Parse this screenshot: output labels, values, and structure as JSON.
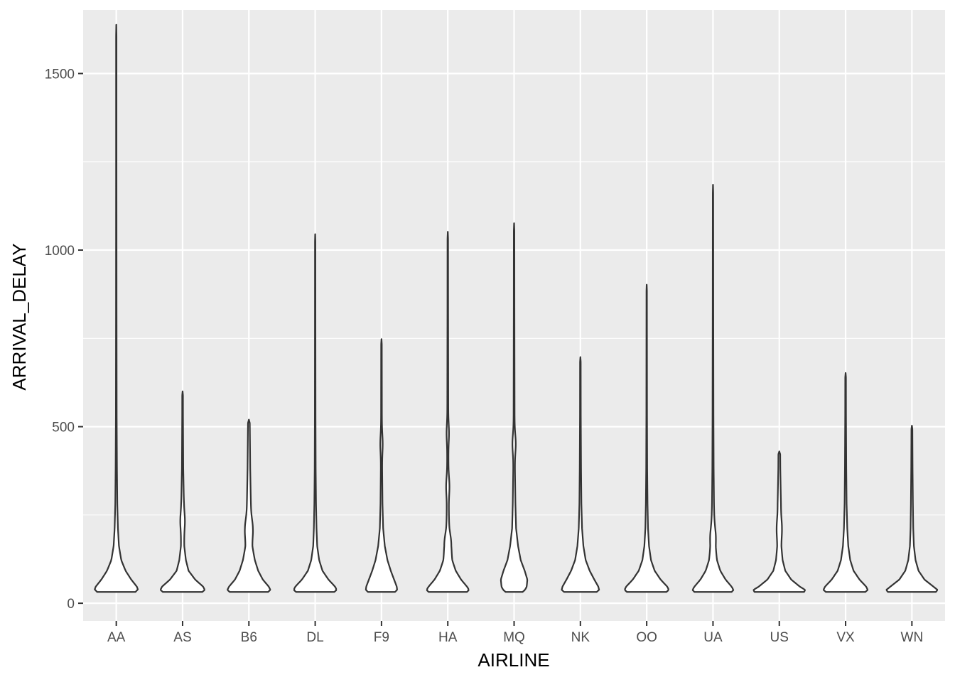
{
  "chart_data": {
    "type": "violin",
    "title": "",
    "xlabel": "AIRLINE",
    "ylabel": "ARRIVAL_DELAY",
    "ylim": [
      -50,
      1680
    ],
    "y_ticks": [
      0,
      500,
      1000,
      1500
    ],
    "y_tick_labels": [
      "0",
      "500",
      "1000",
      "1500"
    ],
    "grid": true,
    "legend": "none",
    "colors": {
      "panel": "#ebebeb",
      "grid": "#ffffff",
      "violin_fill": "#ffffff",
      "violin_stroke": "#333333"
    },
    "categories": [
      "AA",
      "AS",
      "B6",
      "DL",
      "F9",
      "HA",
      "MQ",
      "NK",
      "OO",
      "UA",
      "US",
      "VX",
      "WN"
    ],
    "violins": [
      {
        "category": "AA",
        "min": 32,
        "max": 1638,
        "widths": [
          0.68,
          0.62,
          0.45,
          0.28,
          0.15,
          0.08,
          0.05,
          0.03,
          0.02,
          0.012,
          0.008,
          0.006
        ],
        "bulges": []
      },
      {
        "category": "AS",
        "min": 32,
        "max": 600,
        "widths": [
          0.7,
          0.62,
          0.38,
          0.18,
          0.1,
          0.05,
          0.04,
          0.04,
          0.02,
          0.012,
          0.008,
          0.006
        ],
        "bulges": [
          {
            "at": 200,
            "w": 0.03
          }
        ]
      },
      {
        "category": "B6",
        "min": 32,
        "max": 520,
        "widths": [
          0.68,
          0.6,
          0.42,
          0.28,
          0.18,
          0.1,
          0.07,
          0.06,
          0.04,
          0.025,
          0.012,
          0.008
        ],
        "bulges": [
          {
            "at": 180,
            "w": 0.05
          }
        ]
      },
      {
        "category": "DL",
        "min": 32,
        "max": 1045,
        "widths": [
          0.68,
          0.6,
          0.4,
          0.22,
          0.12,
          0.06,
          0.04,
          0.025,
          0.015,
          0.01,
          0.007,
          0.005
        ],
        "bulges": []
      },
      {
        "category": "F9",
        "min": 32,
        "max": 748,
        "widths": [
          0.48,
          0.46,
          0.38,
          0.28,
          0.18,
          0.1,
          0.05,
          0.03,
          0.02,
          0.012,
          0.008,
          0.006
        ],
        "bulges": [
          {
            "at": 420,
            "w": 0.02
          }
        ]
      },
      {
        "category": "HA",
        "min": 32,
        "max": 1052,
        "widths": [
          0.68,
          0.58,
          0.4,
          0.24,
          0.13,
          0.07,
          0.04,
          0.03,
          0.02,
          0.015,
          0.01,
          0.007
        ],
        "bulges": [
          {
            "at": 140,
            "w": 0.04
          },
          {
            "at": 300,
            "w": 0.025
          },
          {
            "at": 450,
            "w": 0.02
          }
        ]
      },
      {
        "category": "MQ",
        "min": 32,
        "max": 1076,
        "widths": [
          0.3,
          0.38,
          0.4,
          0.32,
          0.2,
          0.12,
          0.06,
          0.04,
          0.025,
          0.015,
          0.01,
          0.007
        ],
        "bulges": [
          {
            "at": 420,
            "w": 0.03
          }
        ]
      },
      {
        "category": "NK",
        "min": 32,
        "max": 697,
        "widths": [
          0.58,
          0.54,
          0.42,
          0.28,
          0.16,
          0.09,
          0.05,
          0.03,
          0.02,
          0.012,
          0.008,
          0.006
        ],
        "bulges": []
      },
      {
        "category": "OO",
        "min": 32,
        "max": 902,
        "widths": [
          0.7,
          0.62,
          0.42,
          0.24,
          0.13,
          0.07,
          0.04,
          0.025,
          0.015,
          0.01,
          0.007,
          0.005
        ],
        "bulges": []
      },
      {
        "category": "UA",
        "min": 32,
        "max": 1185,
        "widths": [
          0.66,
          0.56,
          0.38,
          0.22,
          0.12,
          0.07,
          0.045,
          0.03,
          0.02,
          0.014,
          0.009,
          0.006
        ],
        "bulges": [
          {
            "at": 160,
            "w": 0.03
          }
        ]
      },
      {
        "category": "US",
        "min": 32,
        "max": 430,
        "widths": [
          0.88,
          0.62,
          0.36,
          0.18,
          0.1,
          0.06,
          0.05,
          0.05,
          0.03,
          0.02,
          0.012,
          0.008
        ],
        "bulges": [
          {
            "at": 180,
            "w": 0.03
          }
        ]
      },
      {
        "category": "VX",
        "min": 32,
        "max": 652,
        "widths": [
          0.7,
          0.62,
          0.42,
          0.24,
          0.14,
          0.08,
          0.05,
          0.03,
          0.02,
          0.012,
          0.008,
          0.006
        ],
        "bulges": []
      },
      {
        "category": "WN",
        "min": 32,
        "max": 503,
        "widths": [
          0.85,
          0.65,
          0.38,
          0.2,
          0.11,
          0.06,
          0.04,
          0.03,
          0.02,
          0.012,
          0.008,
          0.006
        ],
        "bulges": []
      }
    ]
  }
}
